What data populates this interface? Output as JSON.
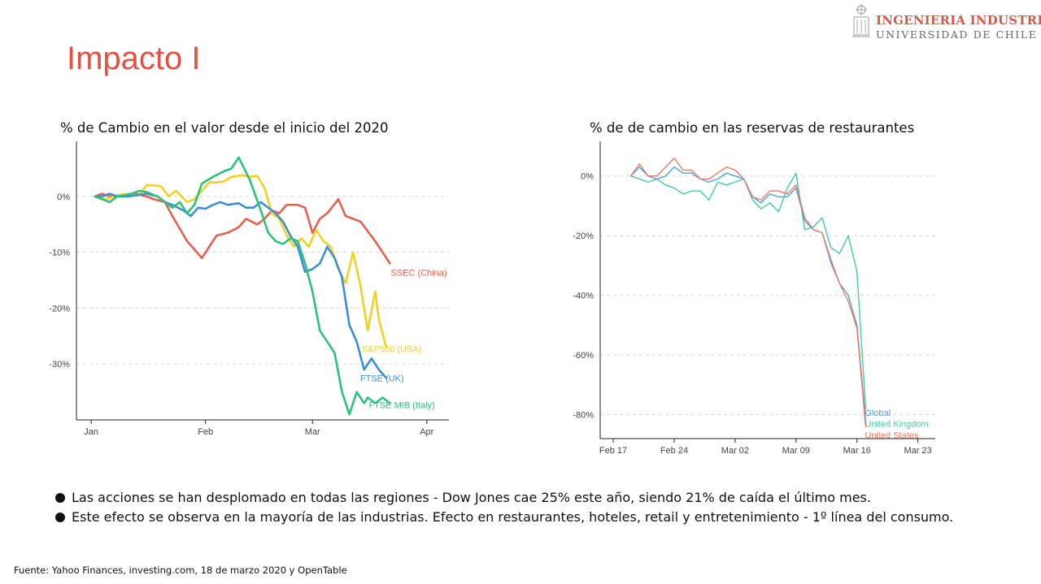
{
  "logo": {
    "line1": "INGENIERIA INDUSTRIAL",
    "line2": "UNIVERSIDAD DE CHILE",
    "icon": "university-seal-icon",
    "colors": {
      "line1": "#d6584a",
      "line2": "#666666"
    }
  },
  "slide": {
    "title": "Impacto I",
    "title_color": "#e15244"
  },
  "chart_data": [
    {
      "type": "line",
      "title": "% de Cambio en el valor desde el inicio del 2020",
      "xlabel": "",
      "ylabel": "",
      "x_ticks": [
        {
          "label": "Jan",
          "value": 0
        },
        {
          "label": "Feb",
          "value": 31
        },
        {
          "label": "Mar",
          "value": 60
        },
        {
          "label": "Apr",
          "value": 91
        }
      ],
      "x_note": "days since January 1, 2020",
      "y_ticks": [
        {
          "label": "0%",
          "value": 0
        },
        {
          "label": "-10%",
          "value": -10
        },
        {
          "label": "-20%",
          "value": -20
        },
        {
          "label": "-30%",
          "value": -30
        }
      ],
      "xlim": [
        -4,
        97
      ],
      "ylim": [
        -40,
        9
      ],
      "grid": "horizontal dashed",
      "legend": "inline labels at line ends",
      "series": [
        {
          "name": "SSEC (China)",
          "color": "#e5604e",
          "x": [
            1,
            3,
            5,
            8,
            12,
            15,
            17,
            20,
            22,
            26,
            30,
            34,
            37,
            40,
            42,
            45,
            47,
            49,
            51,
            53,
            56,
            58,
            60,
            62,
            64,
            67,
            69,
            71,
            73,
            77,
            79,
            81
          ],
          "y": [
            0,
            0.5,
            0,
            0.3,
            0.5,
            0,
            -0.5,
            -1,
            -3.5,
            -8,
            -11,
            -7,
            -6.5,
            -5.5,
            -4,
            -5,
            -4,
            -2.5,
            -3,
            -1.5,
            -1.5,
            -2,
            -6.5,
            -4,
            -3,
            -0.5,
            -3.5,
            -4,
            -4.5,
            -8,
            -10,
            -12
          ]
        },
        {
          "name": "S&P500 (USA)",
          "color": "#f2d122",
          "x": [
            1,
            4,
            7,
            10,
            13,
            15,
            17,
            19,
            21,
            23,
            26,
            28,
            30,
            32,
            34,
            36,
            38,
            41,
            43,
            45,
            47,
            49,
            51,
            53,
            55,
            57,
            59,
            61,
            63,
            65,
            67,
            69,
            71,
            73,
            75,
            77,
            78,
            80
          ],
          "y": [
            0,
            -0.5,
            0.2,
            0.5,
            0.2,
            2,
            2,
            1.8,
            0,
            1,
            -1,
            -0.5,
            1,
            2.5,
            2.5,
            2.7,
            3.5,
            3.8,
            3.5,
            3.7,
            1.5,
            -3,
            -4,
            -7,
            -9,
            -7.5,
            -9,
            -6,
            -8,
            -9,
            -13,
            -15.5,
            -10,
            -16,
            -24,
            -17,
            -22,
            -27
          ]
        },
        {
          "name": "FTSE (UK)",
          "color": "#3b8fd7",
          "x": [
            1,
            3,
            5,
            7,
            10,
            13,
            15,
            18,
            20,
            22,
            25,
            27,
            29,
            31,
            33,
            35,
            37,
            40,
            42,
            44,
            46,
            48,
            50,
            52,
            54,
            56,
            58,
            60,
            62,
            64,
            66,
            68,
            70,
            72,
            74,
            76,
            78,
            80
          ],
          "y": [
            0,
            0,
            0.5,
            0,
            0,
            0.3,
            0.5,
            0,
            -1,
            -1.5,
            -2.5,
            -3.5,
            -2,
            -2.2,
            -1.5,
            -1,
            -1.5,
            -1.2,
            -2,
            -2,
            -1,
            -2,
            -3,
            -4.5,
            -7,
            -9,
            -13.5,
            -13,
            -12,
            -9,
            -11,
            -14.5,
            -23,
            -26,
            -31,
            -29,
            -31,
            -32.5
          ]
        },
        {
          "name": "FTSE MIB (Italy)",
          "color": "#2fc07c",
          "x": [
            1,
            3,
            5,
            7,
            9,
            11,
            13,
            15,
            18,
            20,
            22,
            24,
            26,
            28,
            30,
            33,
            36,
            38,
            40,
            43,
            46,
            48,
            50,
            52,
            54,
            56,
            58,
            60,
            62,
            64,
            66,
            68,
            70,
            72,
            74,
            75,
            77,
            79,
            81
          ],
          "y": [
            0,
            -0.5,
            -1,
            0,
            0.2,
            0.5,
            1,
            0.8,
            0,
            -1,
            -2,
            -1,
            -3,
            -1.5,
            2.3,
            3.5,
            4.5,
            5,
            7,
            3,
            -2.5,
            -6.5,
            -8,
            -8.5,
            -7.5,
            -8,
            -12,
            -17,
            -24,
            -26,
            -28,
            -35,
            -39,
            -35,
            -37,
            -36,
            -37,
            -36,
            -37
          ]
        }
      ]
    },
    {
      "type": "line",
      "title": "% de de cambio en las reservas de restaurantes",
      "xlabel": "",
      "ylabel": "",
      "x_ticks": [
        {
          "label": "Feb 17",
          "value": 0
        },
        {
          "label": "Feb 24",
          "value": 7
        },
        {
          "label": "Mar 02",
          "value": 14
        },
        {
          "label": "Mar 09",
          "value": 21
        },
        {
          "label": "Mar 16",
          "value": 28
        },
        {
          "label": "Mar 23",
          "value": 35
        }
      ],
      "x_note": "days since February 17, 2020",
      "y_ticks": [
        {
          "label": "0%",
          "value": 0
        },
        {
          "label": "-20%",
          "value": -20
        },
        {
          "label": "-40%",
          "value": -40
        },
        {
          "label": "-60%",
          "value": -60
        },
        {
          "label": "-80%",
          "value": -80
        }
      ],
      "xlim": [
        -1.5,
        37
      ],
      "ylim": [
        -88,
        10
      ],
      "grid": "horizontal dashed",
      "legend": "inline labels at line ends",
      "series": [
        {
          "name": "United Kingdom",
          "color": "#44cc9e",
          "x": [
            2,
            3,
            4,
            5,
            6,
            7,
            8,
            9,
            10,
            11,
            12,
            13,
            14,
            15,
            16,
            17,
            18,
            19,
            20,
            21,
            22,
            23,
            24,
            25,
            26,
            27,
            28,
            29
          ],
          "y": [
            0,
            -1,
            -2,
            -1,
            -3,
            -4,
            -6,
            -5,
            -5,
            -8,
            -2,
            -3,
            -2,
            -1,
            -8,
            -11,
            -9,
            -12,
            -4,
            1,
            -18,
            -17,
            -14,
            -24,
            -26,
            -20,
            -32,
            -78
          ]
        },
        {
          "name": "Global",
          "color": "#45a2e4",
          "x": [
            2,
            3,
            4,
            5,
            6,
            7,
            8,
            9,
            10,
            11,
            12,
            13,
            14,
            15,
            16,
            17,
            18,
            19,
            20,
            21,
            22,
            23,
            24,
            25,
            26,
            27,
            28,
            29
          ],
          "y": [
            0,
            3,
            0,
            -1,
            0,
            3,
            1,
            1,
            -1,
            -2,
            -1,
            1,
            0,
            -1,
            -7,
            -9,
            -6,
            -7,
            -7,
            -4,
            -15,
            -18,
            -19,
            -29,
            -36,
            -40,
            -50,
            -82
          ]
        },
        {
          "name": "United States",
          "color": "#ee7a63",
          "x": [
            2,
            3,
            4,
            5,
            6,
            7,
            8,
            9,
            10,
            11,
            12,
            13,
            14,
            15,
            16,
            17,
            18,
            19,
            20,
            21,
            22,
            23,
            24,
            25,
            26,
            27,
            28,
            29
          ],
          "y": [
            0,
            4,
            0,
            0,
            3,
            6,
            2,
            2,
            -1,
            -1,
            1,
            3,
            2,
            -1,
            -7,
            -8,
            -5,
            -5,
            -6,
            -3,
            -14,
            -18,
            -19,
            -28,
            -36,
            -42,
            -51,
            -84
          ]
        }
      ]
    }
  ],
  "bullets": [
    "Las acciones se han desplomado en todas las regiones - Dow Jones cae 25% este año, siendo 21% de caída el último mes.",
    "Este efecto se observa en la mayoría de las industrias. Efecto en restaurantes, hoteles, retail y entretenimiento - 1º línea del consumo."
  ],
  "source": "Fuente: Yahoo Finances, investing.com, 18 de marzo 2020 y OpenTable"
}
